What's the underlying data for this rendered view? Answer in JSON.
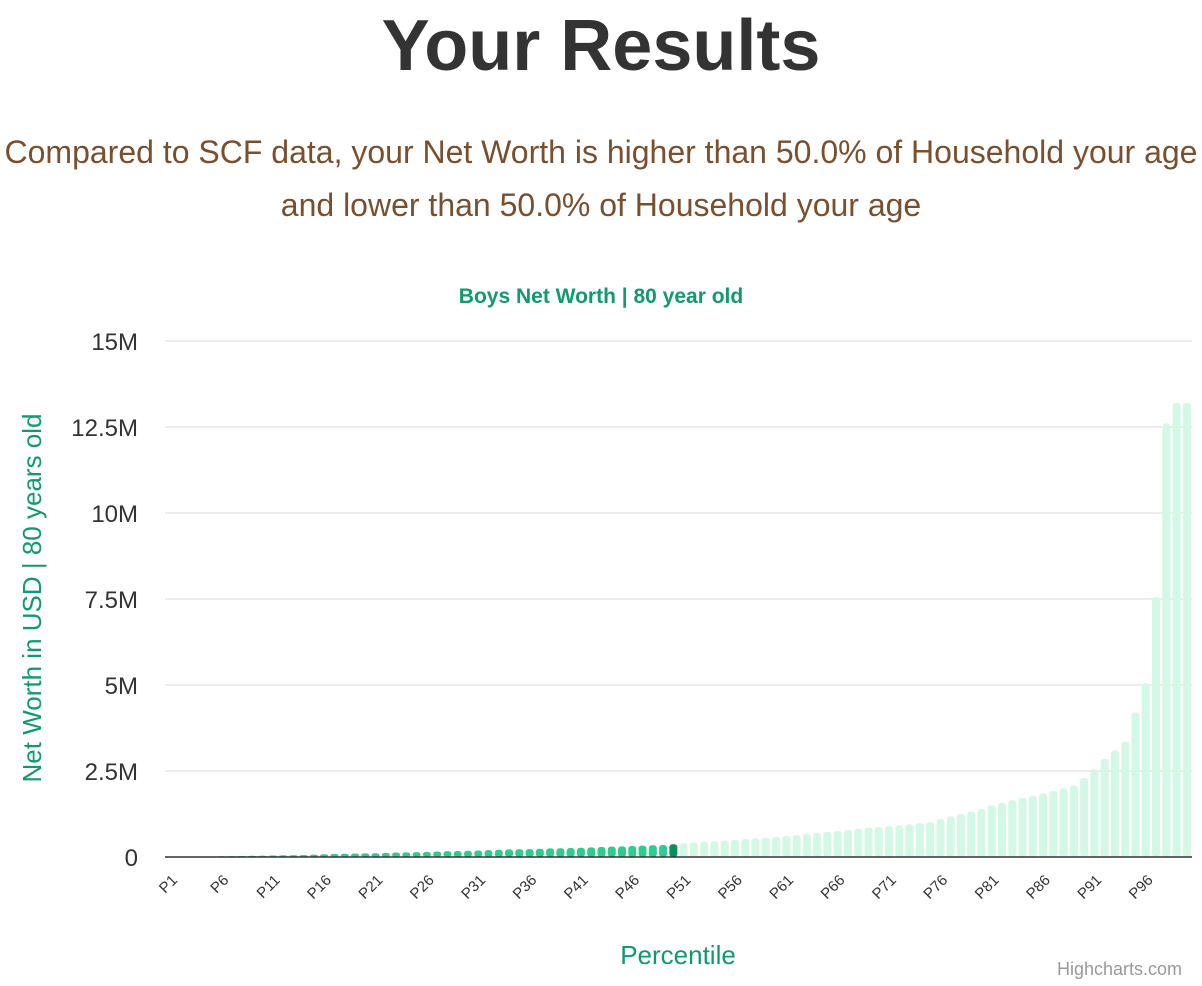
{
  "page": {
    "title": "Your Results",
    "result_text": "Compared to SCF data, your Net Worth is higher than 50.0% of Household your age and lower than 50.0% of Household your age"
  },
  "credits": "Highcharts.com",
  "colors": {
    "below": "#2ecc8f",
    "highlight": "#0a8f5c",
    "above": "#d3f8e6",
    "accent": "#0f9b6e",
    "result_text": "#7a4f2e",
    "grid": "#e6e6e6"
  },
  "chart_data": {
    "type": "bar",
    "title": "Boys Net Worth | 80 year old",
    "xlabel": "Percentile",
    "ylabel": "Net Worth in USD | 80 years old",
    "ylim": [
      0,
      15000000
    ],
    "yticks": [
      {
        "value": 0,
        "label": "0"
      },
      {
        "value": 2500000,
        "label": "2.5M"
      },
      {
        "value": 5000000,
        "label": "5M"
      },
      {
        "value": 7500000,
        "label": "7.5M"
      },
      {
        "value": 10000000,
        "label": "10M"
      },
      {
        "value": 12500000,
        "label": "12.5M"
      },
      {
        "value": 15000000,
        "label": "15M"
      }
    ],
    "highlight_category": "P50",
    "grid": true,
    "legend": "none",
    "categories": [
      "P1",
      "P2",
      "P3",
      "P4",
      "P5",
      "P6",
      "P7",
      "P8",
      "P9",
      "P10",
      "P11",
      "P12",
      "P13",
      "P14",
      "P15",
      "P16",
      "P17",
      "P18",
      "P19",
      "P20",
      "P21",
      "P22",
      "P23",
      "P24",
      "P25",
      "P26",
      "P27",
      "P28",
      "P29",
      "P30",
      "P31",
      "P32",
      "P33",
      "P34",
      "P35",
      "P36",
      "P37",
      "P38",
      "P39",
      "P40",
      "P41",
      "P42",
      "P43",
      "P44",
      "P45",
      "P46",
      "P47",
      "P48",
      "P49",
      "P50",
      "P51",
      "P52",
      "P53",
      "P54",
      "P55",
      "P56",
      "P57",
      "P58",
      "P59",
      "P60",
      "P61",
      "P62",
      "P63",
      "P64",
      "P65",
      "P66",
      "P67",
      "P68",
      "P69",
      "P70",
      "P71",
      "P72",
      "P73",
      "P74",
      "P75",
      "P76",
      "P77",
      "P78",
      "P79",
      "P80",
      "P81",
      "P82",
      "P83",
      "P84",
      "P85",
      "P86",
      "P87",
      "P88",
      "P89",
      "P90",
      "P91",
      "P92",
      "P93",
      "P94",
      "P95",
      "P96",
      "P97",
      "P98",
      "P99",
      "P100"
    ],
    "tick_labels": [
      "P1",
      "P6",
      "P11",
      "P16",
      "P21",
      "P26",
      "P31",
      "P36",
      "P41",
      "P46",
      "P51",
      "P56",
      "P61",
      "P66",
      "P71",
      "P76",
      "P81",
      "P86",
      "P91",
      "P96"
    ],
    "values": [
      0,
      0,
      0,
      0,
      10000,
      20000,
      25000,
      30000,
      35000,
      40000,
      45000,
      50000,
      55000,
      60000,
      70000,
      80000,
      90000,
      95000,
      100000,
      105000,
      110000,
      120000,
      130000,
      135000,
      140000,
      150000,
      160000,
      170000,
      175000,
      180000,
      190000,
      200000,
      210000,
      220000,
      225000,
      230000,
      240000,
      250000,
      255000,
      260000,
      270000,
      280000,
      290000,
      300000,
      310000,
      320000,
      330000,
      340000,
      350000,
      370000,
      400000,
      420000,
      440000,
      460000,
      480000,
      500000,
      520000,
      540000,
      560000,
      580000,
      610000,
      640000,
      670000,
      700000,
      730000,
      760000,
      790000,
      820000,
      850000,
      870000,
      890000,
      920000,
      950000,
      980000,
      1010000,
      1100000,
      1180000,
      1250000,
      1320000,
      1400000,
      1500000,
      1580000,
      1650000,
      1720000,
      1780000,
      1850000,
      1920000,
      2000000,
      2080000,
      2300000,
      2550000,
      2850000,
      3100000,
      3350000,
      4200000,
      5050000,
      7550000,
      12600000,
      13200000,
      13200000
    ]
  }
}
